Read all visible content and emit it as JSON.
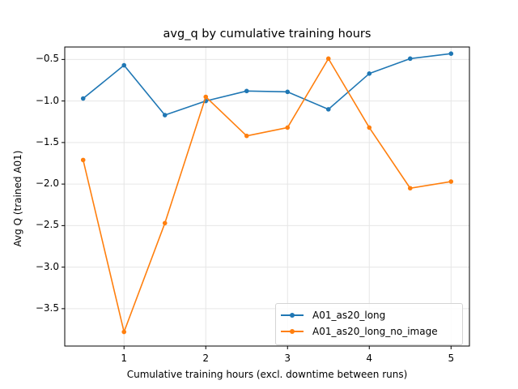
{
  "chart_data": {
    "type": "line",
    "title": "avg_q by cumulative training hours",
    "xlabel": "Cumulative training hours (excl. downtime between runs)",
    "ylabel": "Avg Q (trained A01)",
    "x": [
      0.5,
      1.0,
      1.5,
      2.0,
      2.5,
      3.0,
      3.5,
      4.0,
      4.5,
      5.0
    ],
    "series": [
      {
        "name": "A01_as20_long",
        "color": "#1f77b4",
        "values": [
          -0.97,
          -0.57,
          -1.17,
          -1.0,
          -0.88,
          -0.89,
          -1.1,
          -0.67,
          -0.49,
          -0.43
        ]
      },
      {
        "name": "A01_as20_long_no_image",
        "color": "#ff7f0e",
        "values": [
          -1.71,
          -3.78,
          -2.47,
          -0.95,
          -1.42,
          -1.32,
          -0.49,
          -1.32,
          -2.05,
          -1.97
        ]
      }
    ],
    "xlim": [
      0.275,
      5.225
    ],
    "ylim": [
      -3.95,
      -0.35
    ],
    "xticks": [
      "1",
      "2",
      "3",
      "4",
      "5"
    ],
    "yticks": [
      "−0.5",
      "−1.0",
      "−1.5",
      "−2.0",
      "−2.5",
      "−3.0",
      "−3.5"
    ],
    "grid": true,
    "legend_position": "lower right"
  }
}
